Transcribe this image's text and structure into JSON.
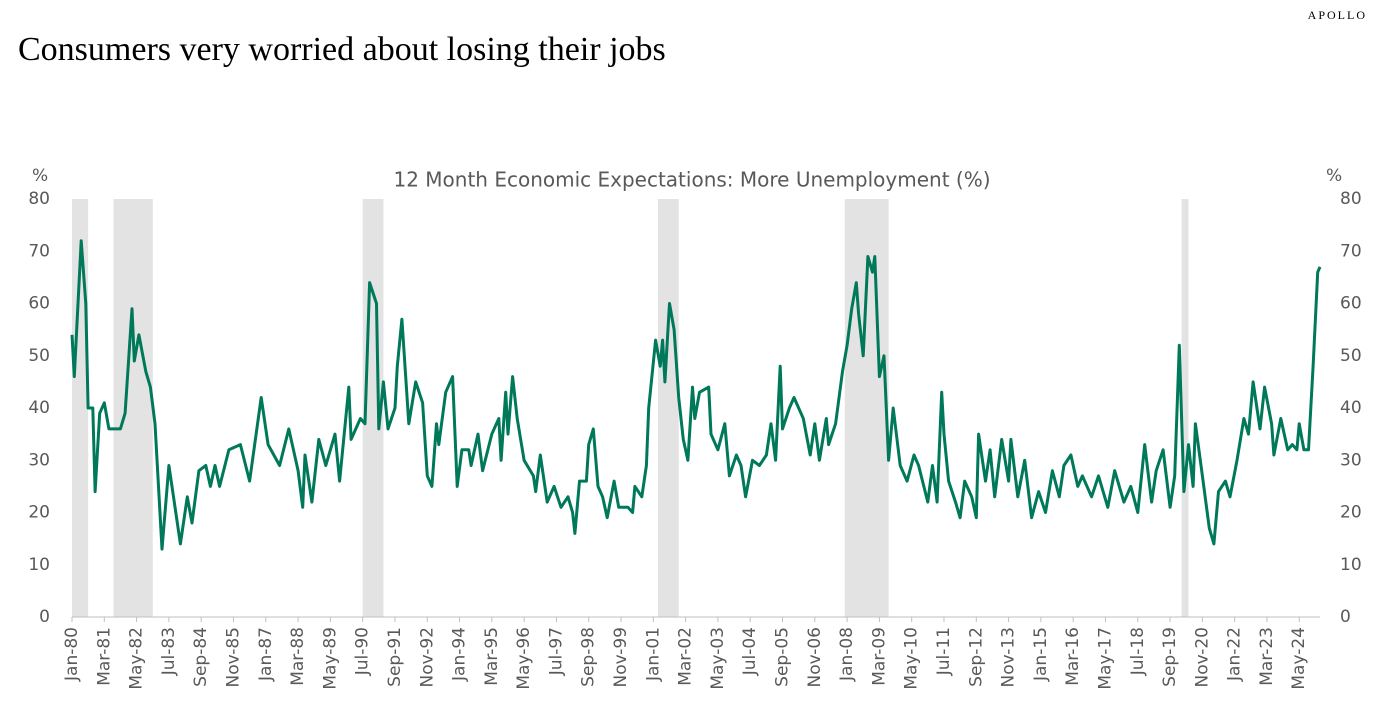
{
  "brand": "APOLLO",
  "headline": "Consumers very worried about losing their jobs",
  "chart_data": {
    "type": "line",
    "title": "12 Month Economic Expectations: More Unemployment (%)",
    "y_label": "%",
    "y2_label": "%",
    "color": "#00785a",
    "shade_color": "#e3e3e3",
    "shaded_periods": [
      [
        "1980-01",
        "1980-07"
      ],
      [
        "1981-07",
        "1982-11"
      ],
      [
        "1990-07",
        "1991-03"
      ],
      [
        "2001-03",
        "2001-11"
      ],
      [
        "2007-12",
        "2009-06"
      ],
      [
        "2020-02",
        "2020-04"
      ]
    ],
    "x": [
      "1980-01",
      "1980-02",
      "1980-05",
      "1980-07",
      "1980-08",
      "1980-10",
      "1980-11",
      "1981-01",
      "1981-03",
      "1981-05",
      "1981-10",
      "1981-12",
      "1982-03",
      "1982-04",
      "1982-06",
      "1982-09",
      "1982-11",
      "1983-01",
      "1983-04",
      "1983-07",
      "1983-10",
      "1983-12",
      "1984-03",
      "1984-05",
      "1984-08",
      "1984-11",
      "1985-01",
      "1985-03",
      "1985-05",
      "1985-09",
      "1986-02",
      "1986-06",
      "1986-11",
      "1987-02",
      "1987-07",
      "1987-11",
      "1988-03",
      "1988-05",
      "1988-06",
      "1988-09",
      "1988-12",
      "1989-03",
      "1989-07",
      "1989-09",
      "1990-01",
      "1990-02",
      "1990-06",
      "1990-08",
      "1990-10",
      "1991-01",
      "1991-02",
      "1991-04",
      "1991-06",
      "1991-09",
      "1991-10",
      "1991-12",
      "1992-03",
      "1992-06",
      "1992-09",
      "1992-11",
      "1993-01",
      "1993-03",
      "1993-04",
      "1993-07",
      "1993-10",
      "1993-12",
      "1994-02",
      "1994-05",
      "1994-06",
      "1994-09",
      "1994-11",
      "1995-03",
      "1995-06",
      "1995-07",
      "1995-09",
      "1995-10",
      "1995-12",
      "1996-02",
      "1996-05",
      "1996-09",
      "1996-10",
      "1996-12",
      "1997-03",
      "1997-06",
      "1997-09",
      "1997-12",
      "1998-02",
      "1998-03",
      "1998-05",
      "1998-08",
      "1998-09",
      "1998-11",
      "1999-01",
      "1999-03",
      "1999-05",
      "1999-08",
      "1999-10",
      "2000-02",
      "2000-04",
      "2000-05",
      "2000-08",
      "2000-10",
      "2000-11",
      "2001-02",
      "2001-04",
      "2001-05",
      "2001-06",
      "2001-08",
      "2001-10",
      "2001-12",
      "2002-02",
      "2002-04",
      "2002-06",
      "2002-07",
      "2002-09",
      "2003-01",
      "2003-02",
      "2003-05",
      "2003-08",
      "2003-10",
      "2004-01",
      "2004-03",
      "2004-05",
      "2004-08",
      "2004-11",
      "2005-02",
      "2005-04",
      "2005-06",
      "2005-08",
      "2005-09",
      "2005-12",
      "2006-02",
      "2006-06",
      "2006-09",
      "2006-11",
      "2007-01",
      "2007-04",
      "2007-05",
      "2007-08",
      "2007-11",
      "2008-01",
      "2008-03",
      "2008-05",
      "2008-06",
      "2008-08",
      "2008-10",
      "2008-12",
      "2009-01",
      "2009-03",
      "2009-05",
      "2009-07",
      "2009-09",
      "2009-12",
      "2010-03",
      "2010-06",
      "2010-08",
      "2010-12",
      "2011-02",
      "2011-04",
      "2011-06",
      "2011-07",
      "2011-09",
      "2011-12",
      "2012-02",
      "2012-04",
      "2012-07",
      "2012-09",
      "2012-10",
      "2013-01",
      "2013-03",
      "2013-05",
      "2013-08",
      "2013-11",
      "2013-12",
      "2014-03",
      "2014-06",
      "2014-09",
      "2014-12",
      "2015-03",
      "2015-06",
      "2015-09",
      "2015-11",
      "2016-02",
      "2016-05",
      "2016-07",
      "2016-11",
      "2017-02",
      "2017-06",
      "2017-09",
      "2018-01",
      "2018-04",
      "2018-07",
      "2018-10",
      "2019-01",
      "2019-03",
      "2019-06",
      "2019-09",
      "2019-11",
      "2020-01",
      "2020-03",
      "2020-05",
      "2020-07",
      "2020-08",
      "2020-11",
      "2021-02",
      "2021-04",
      "2021-06",
      "2021-09",
      "2021-11",
      "2022-02",
      "2022-05",
      "2022-07",
      "2022-09",
      "2022-12",
      "2023-02",
      "2023-05",
      "2023-06",
      "2023-09",
      "2023-12",
      "2024-02",
      "2024-04",
      "2024-05",
      "2024-07",
      "2024-09",
      "2024-11",
      "2025-01",
      "2025-02"
    ],
    "values": [
      54,
      46,
      72,
      60,
      40,
      40,
      24,
      39,
      41,
      36,
      36,
      39,
      59,
      49,
      54,
      47,
      44,
      37,
      13,
      29,
      20,
      14,
      23,
      18,
      28,
      29,
      25,
      29,
      25,
      32,
      33,
      26,
      42,
      33,
      29,
      36,
      28,
      21,
      31,
      22,
      34,
      29,
      35,
      26,
      44,
      34,
      38,
      37,
      64,
      60,
      36,
      45,
      36,
      40,
      48,
      57,
      37,
      45,
      41,
      27,
      25,
      37,
      33,
      43,
      46,
      25,
      32,
      32,
      29,
      35,
      28,
      35,
      38,
      30,
      43,
      35,
      46,
      38,
      30,
      27,
      24,
      31,
      22,
      25,
      21,
      23,
      20,
      16,
      26,
      26,
      33,
      36,
      25,
      23,
      19,
      26,
      21,
      21,
      20,
      25,
      23,
      29,
      40,
      53,
      48,
      53,
      45,
      60,
      55,
      42,
      34,
      30,
      44,
      38,
      43,
      44,
      35,
      32,
      37,
      27,
      31,
      29,
      23,
      30,
      29,
      31,
      37,
      30,
      48,
      36,
      40,
      42,
      38,
      31,
      37,
      30,
      38,
      33,
      37,
      47,
      52,
      59,
      64,
      58,
      50,
      69,
      66,
      69,
      46,
      50,
      30,
      40,
      29,
      26,
      31,
      29,
      22,
      29,
      22,
      43,
      35,
      26,
      22,
      19,
      26,
      23,
      19,
      35,
      26,
      32,
      23,
      34,
      26,
      34,
      23,
      30,
      19,
      24,
      20,
      28,
      23,
      29,
      31,
      25,
      27,
      23,
      27,
      21,
      28,
      22,
      25,
      20,
      33,
      22,
      28,
      32,
      21,
      27,
      52,
      24,
      33,
      25,
      37,
      27,
      17,
      14,
      24,
      26,
      23,
      30,
      38,
      35,
      45,
      36,
      44,
      37,
      31,
      38,
      32,
      33,
      32,
      37,
      32,
      32,
      48,
      66,
      67
    ],
    "xlim": [
      "1980-01",
      "2025-02"
    ],
    "xticks": [
      {
        "value": "1980-01",
        "label": "Jan-80"
      },
      {
        "value": "1981-03",
        "label": "Mar-81"
      },
      {
        "value": "1982-05",
        "label": "May-82"
      },
      {
        "value": "1983-07",
        "label": "Jul-83"
      },
      {
        "value": "1984-09",
        "label": "Sep-84"
      },
      {
        "value": "1985-11",
        "label": "Nov-85"
      },
      {
        "value": "1987-01",
        "label": "Jan-87"
      },
      {
        "value": "1988-03",
        "label": "Mar-88"
      },
      {
        "value": "1989-05",
        "label": "May-89"
      },
      {
        "value": "1990-07",
        "label": "Jul-90"
      },
      {
        "value": "1991-09",
        "label": "Sep-91"
      },
      {
        "value": "1992-11",
        "label": "Nov-92"
      },
      {
        "value": "1994-01",
        "label": "Jan-94"
      },
      {
        "value": "1995-03",
        "label": "Mar-95"
      },
      {
        "value": "1996-05",
        "label": "May-96"
      },
      {
        "value": "1997-07",
        "label": "Jul-97"
      },
      {
        "value": "1998-09",
        "label": "Sep-98"
      },
      {
        "value": "1999-11",
        "label": "Nov-99"
      },
      {
        "value": "2001-01",
        "label": "Jan-01"
      },
      {
        "value": "2002-03",
        "label": "Mar-02"
      },
      {
        "value": "2003-05",
        "label": "May-03"
      },
      {
        "value": "2004-07",
        "label": "Jul-04"
      },
      {
        "value": "2005-09",
        "label": "Sep-05"
      },
      {
        "value": "2006-11",
        "label": "Nov-06"
      },
      {
        "value": "2008-01",
        "label": "Jan-08"
      },
      {
        "value": "2009-03",
        "label": "Mar-09"
      },
      {
        "value": "2010-05",
        "label": "May-10"
      },
      {
        "value": "2011-07",
        "label": "Jul-11"
      },
      {
        "value": "2012-09",
        "label": "Sep-12"
      },
      {
        "value": "2013-11",
        "label": "Nov-13"
      },
      {
        "value": "2015-01",
        "label": "Jan-15"
      },
      {
        "value": "2016-03",
        "label": "Mar-16"
      },
      {
        "value": "2017-05",
        "label": "May-17"
      },
      {
        "value": "2018-07",
        "label": "Jul-18"
      },
      {
        "value": "2019-09",
        "label": "Sep-19"
      },
      {
        "value": "2020-11",
        "label": "Nov-20"
      },
      {
        "value": "2022-01",
        "label": "Jan-22"
      },
      {
        "value": "2023-03",
        "label": "Mar-23"
      },
      {
        "value": "2024-05",
        "label": "May-24"
      }
    ],
    "ylim": [
      0,
      80
    ],
    "yticks": [
      0,
      10,
      20,
      30,
      40,
      50,
      60,
      70,
      80
    ],
    "y2lim": [
      0,
      80
    ],
    "y2ticks": [
      0,
      10,
      20,
      30,
      40,
      50,
      60,
      70,
      80
    ]
  }
}
